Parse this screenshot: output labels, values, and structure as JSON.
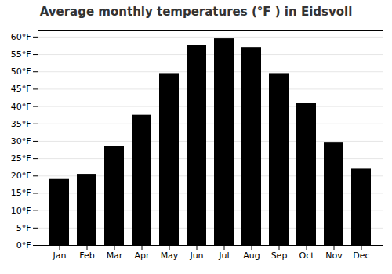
{
  "chart_data": {
    "type": "bar",
    "title": "Average monthly temperatures (°F ) in Eidsvoll",
    "categories": [
      "Jan",
      "Feb",
      "Mar",
      "Apr",
      "May",
      "Jun",
      "Jul",
      "Aug",
      "Sep",
      "Oct",
      "Nov",
      "Dec"
    ],
    "values": [
      19,
      20.5,
      28.5,
      37.5,
      49.5,
      57.5,
      59.5,
      57,
      49.5,
      41,
      29.5,
      22
    ],
    "ylim": [
      0,
      62
    ],
    "yticks": [
      {
        "value": 0,
        "label": "0°F"
      },
      {
        "value": 5,
        "label": "5°F"
      },
      {
        "value": 10,
        "label": "10°F"
      },
      {
        "value": 15,
        "label": "15°F"
      },
      {
        "value": 20,
        "label": "20°F"
      },
      {
        "value": 25,
        "label": "25°F"
      },
      {
        "value": 30,
        "label": "30°F"
      },
      {
        "value": 35,
        "label": "35°F"
      },
      {
        "value": 40,
        "label": "40°F"
      },
      {
        "value": 45,
        "label": "45°F"
      },
      {
        "value": 50,
        "label": "50°F"
      },
      {
        "value": 55,
        "label": "55°F"
      },
      {
        "value": 60,
        "label": "60°F"
      }
    ],
    "grid": true
  }
}
